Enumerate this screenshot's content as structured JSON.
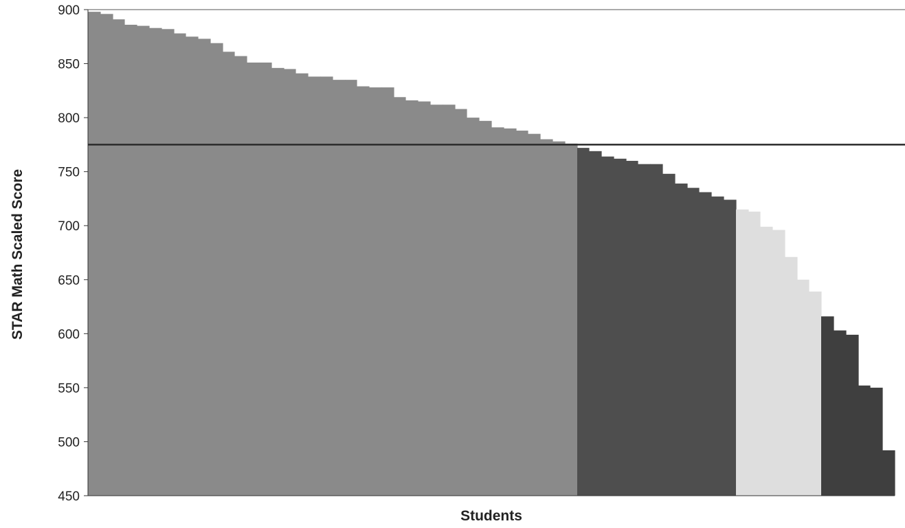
{
  "chart_data": {
    "type": "bar",
    "title": "",
    "xlabel": "Students",
    "ylabel": "STAR Math Scaled Score",
    "ylim": [
      450,
      900
    ],
    "yticks": [
      450,
      500,
      550,
      600,
      650,
      700,
      750,
      800,
      850,
      900
    ],
    "grid": false,
    "benchmark": 775,
    "colors": {
      "above_benchmark": "#8a8a8a",
      "on_watch": "#4e4e4e",
      "intervention": "#dedede",
      "urgent_intervention": "#3f3f3f",
      "benchmark_line": "#2a2a2a"
    },
    "series": [
      {
        "color_key": "above_benchmark",
        "values": [
          898,
          896,
          891,
          886,
          885,
          883,
          882,
          878,
          875,
          873,
          869,
          861,
          857,
          851,
          851,
          846,
          845,
          841,
          838,
          838,
          835,
          835,
          829,
          828,
          828,
          819,
          816,
          815,
          812,
          812,
          808,
          800,
          797,
          791,
          790,
          788,
          785,
          780,
          778,
          776
        ]
      },
      {
        "color_key": "on_watch",
        "values": [
          772,
          769,
          764,
          762,
          760,
          757,
          757,
          748,
          739,
          735,
          731,
          727,
          724
        ]
      },
      {
        "color_key": "intervention",
        "values": [
          715,
          713,
          699,
          696,
          671,
          650,
          639
        ]
      },
      {
        "color_key": "urgent_intervention",
        "values": [
          616,
          603,
          599,
          552,
          550,
          492
        ]
      }
    ]
  }
}
